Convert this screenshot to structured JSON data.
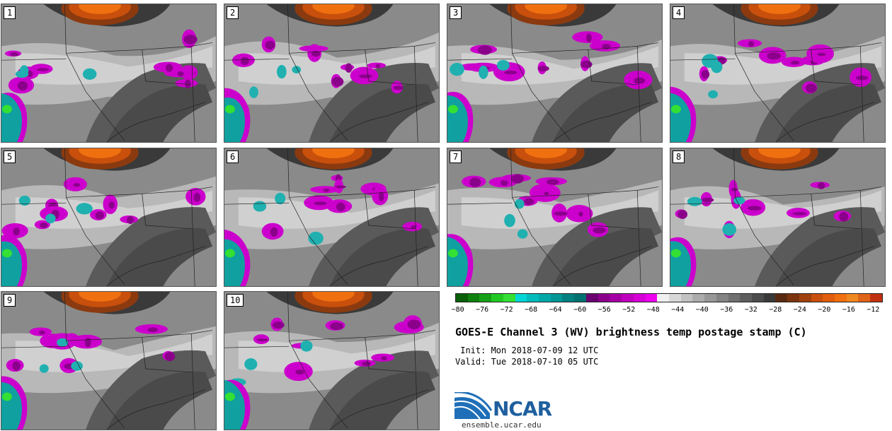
{
  "panels": [
    {
      "label": "1"
    },
    {
      "label": "2"
    },
    {
      "label": "3"
    },
    {
      "label": "4"
    },
    {
      "label": "5"
    },
    {
      "label": "6"
    },
    {
      "label": "7"
    },
    {
      "label": "8"
    },
    {
      "label": "9"
    },
    {
      "label": "10"
    }
  ],
  "colorbar": {
    "colors": [
      "#0a5f0a",
      "#0f7f0f",
      "#16a016",
      "#22c822",
      "#33e033",
      "#00d6d6",
      "#00bcbc",
      "#00a8a8",
      "#009696",
      "#00807f",
      "#007070",
      "#6a0070",
      "#8b008b",
      "#a400a4",
      "#bf00bf",
      "#d600d6",
      "#ee00ee",
      "#f0f0f0",
      "#d8d8d8",
      "#c2c2c2",
      "#acacac",
      "#989898",
      "#848484",
      "#707070",
      "#5e5e5e",
      "#4c4c4c",
      "#3a3a3a",
      "#5a2a10",
      "#7a3510",
      "#a0420e",
      "#c8500c",
      "#e05e0c",
      "#f07010",
      "#f08820",
      "#e06418",
      "#c03010"
    ],
    "ticks": [
      "−80",
      "−76",
      "−72",
      "−68",
      "−64",
      "−60",
      "−56",
      "−52",
      "−48",
      "−44",
      "−40",
      "−36",
      "−32",
      "−28",
      "−24",
      "−20",
      "−16",
      "−12"
    ]
  },
  "title": "GOES-E Channel 3 (WV) brightness temp postage stamp (C)",
  "init_line": " Init: Mon 2018-07-09 12 UTC",
  "valid_line": "Valid: Tue 2018-07-10 05 UTC",
  "logo_text": "NCAR",
  "site": "ensemble.ucar.edu"
}
